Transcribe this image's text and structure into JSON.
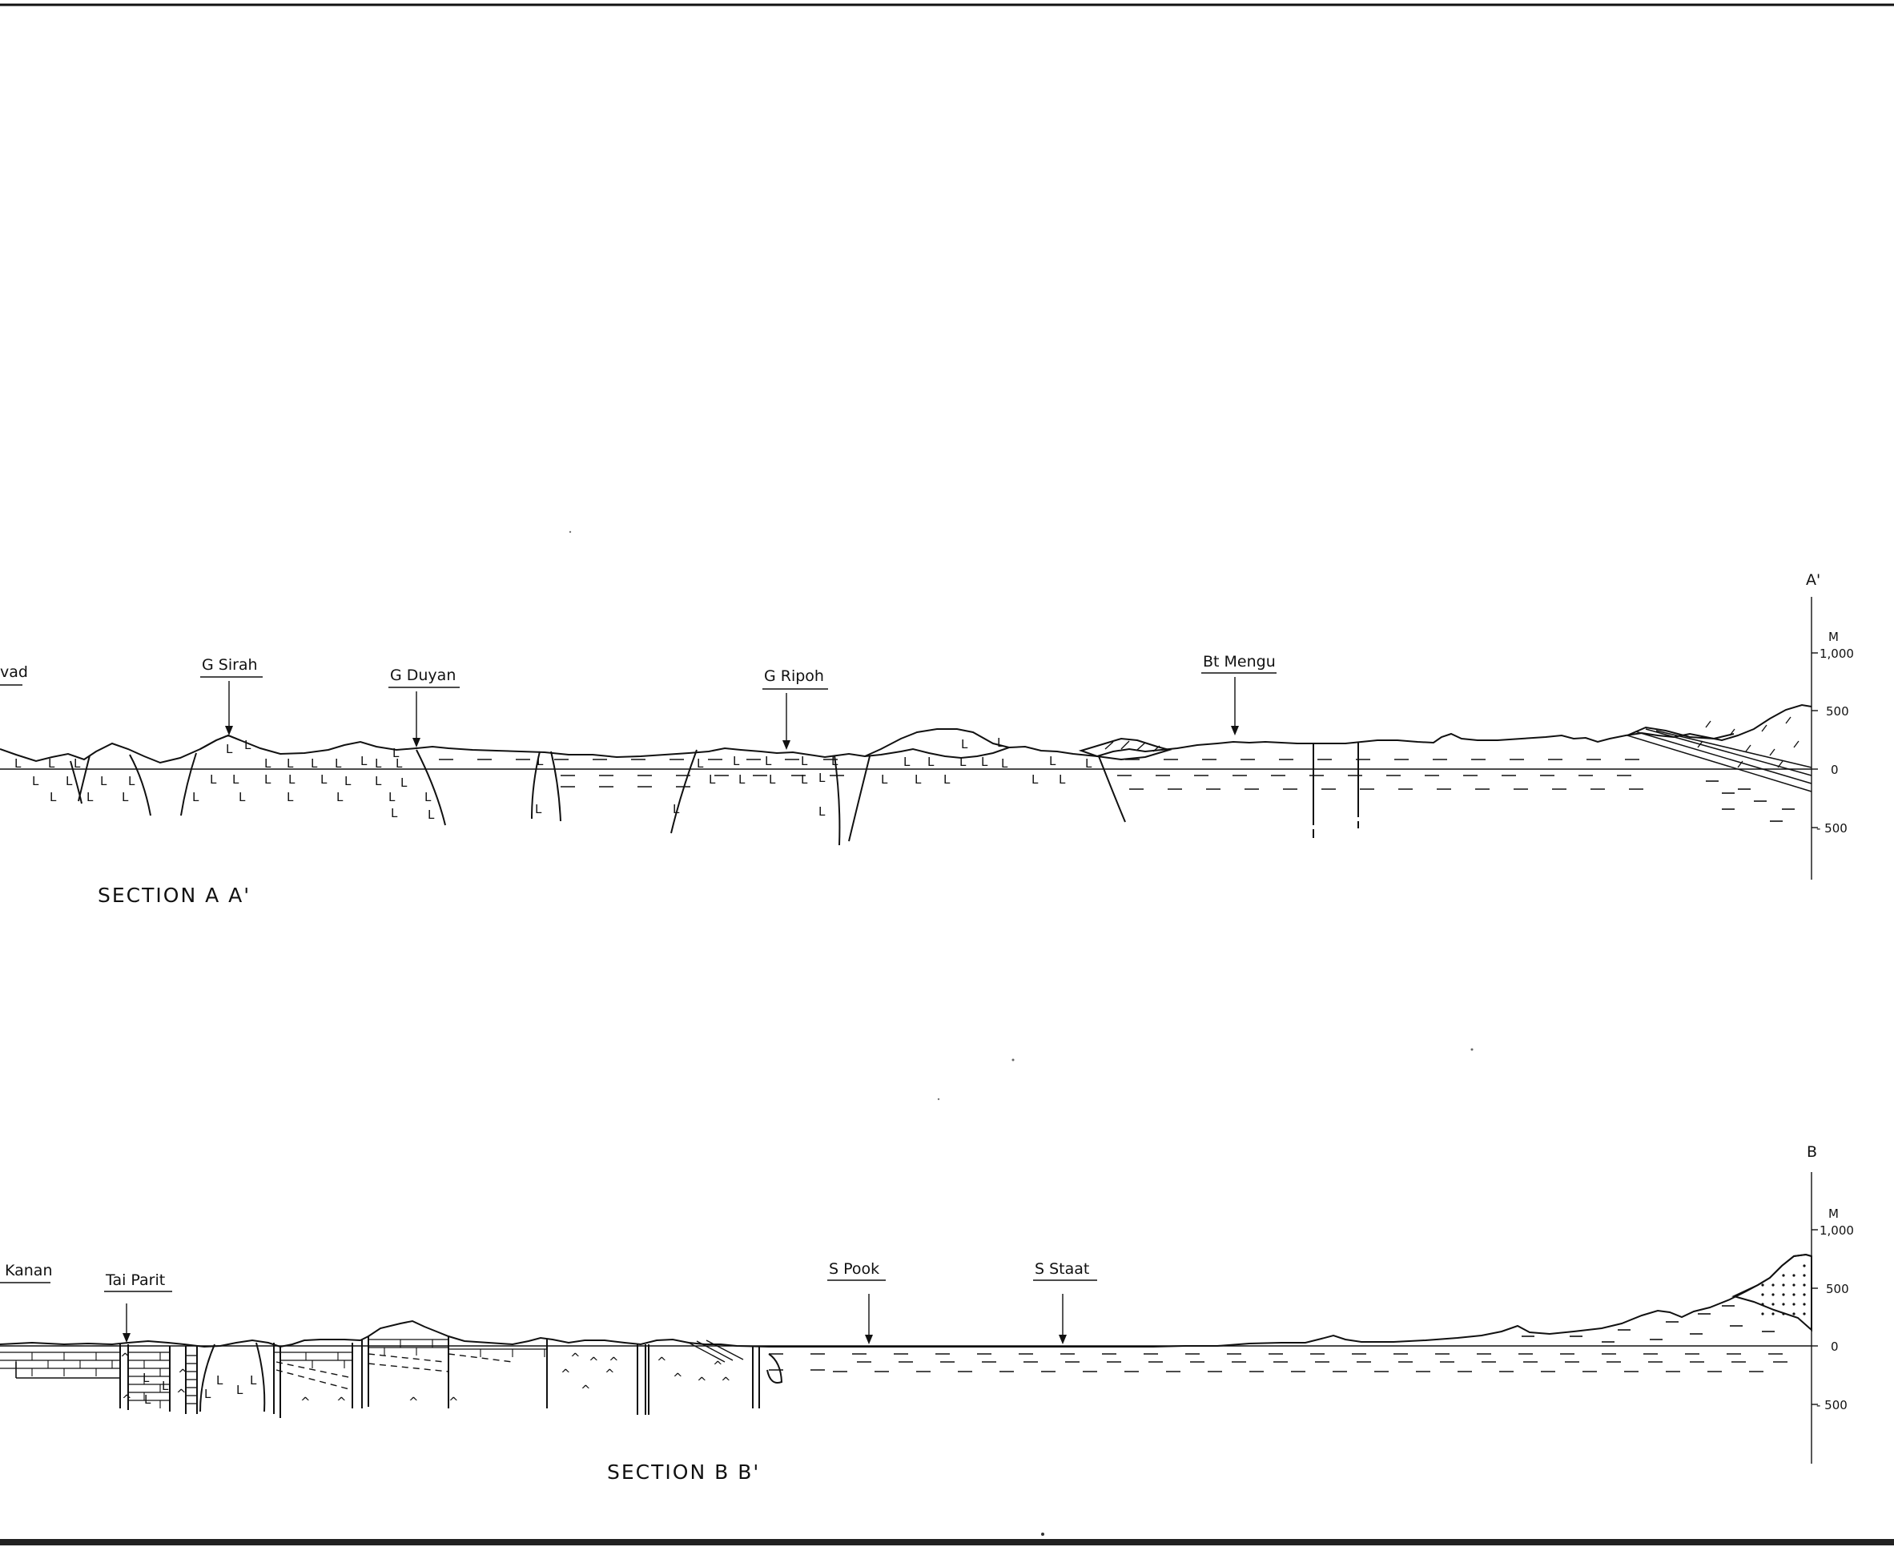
{
  "section_aa": {
    "title": "SECTION A A'",
    "end_label": "A'",
    "locations": [
      "vad",
      "G Sirah",
      "G Duyan",
      "G Ripoh",
      "Bt Mengu"
    ],
    "scale": {
      "unit": "M",
      "ticks": [
        "1,000",
        "500",
        "0",
        "- 500"
      ]
    }
  },
  "section_bb": {
    "title": "SECTION B B'",
    "end_label": "B",
    "locations": [
      "Kanan",
      "Tai Parit",
      "S Pook",
      "S Staat"
    ],
    "scale": {
      "unit": "M",
      "ticks": [
        "1,000",
        "500",
        "0",
        "- 500"
      ]
    }
  },
  "colors": {
    "ink": "#111111",
    "paper": "#ffffff"
  },
  "lithology_symbols": {
    "volcanic_L": "L",
    "volcanic_caret": "^"
  }
}
